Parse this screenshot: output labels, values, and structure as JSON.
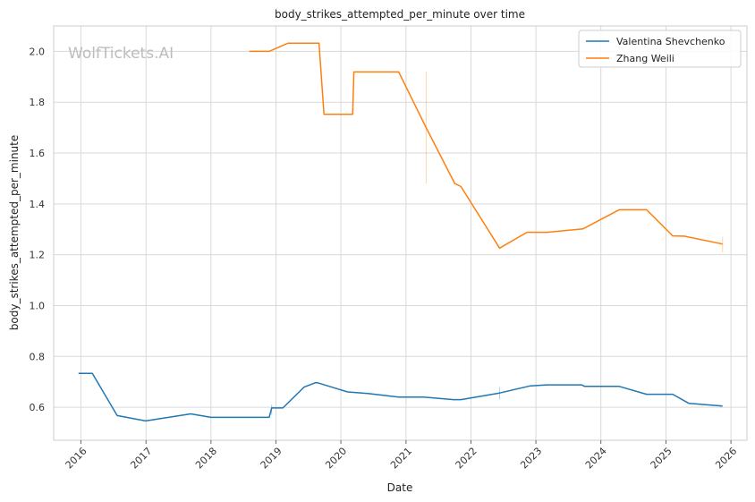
{
  "chart_data": {
    "type": "line",
    "title": "body_strikes_attempted_per_minute over time",
    "xlabel": "Date",
    "ylabel": "body_strikes_attempted_per_minute",
    "watermark": "WolfTickets.AI",
    "x_ticks": [
      "2016",
      "2017",
      "2018",
      "2019",
      "2020",
      "2021",
      "2022",
      "2023",
      "2024",
      "2025",
      "2026"
    ],
    "y_ticks": [
      "0.6",
      "0.8",
      "1.0",
      "1.2",
      "1.4",
      "1.6",
      "1.8",
      "2.0"
    ],
    "xlim": [
      "2015-08-01",
      "2026-04-01"
    ],
    "ylim": [
      0.47,
      2.1
    ],
    "grid": true,
    "legend_position": "top-right",
    "colors": {
      "series1": "#1f77b4",
      "series2": "#ff7f0e"
    },
    "series": [
      {
        "name": "Valentina Shevchenko",
        "points": [
          [
            "2015-12-19",
            0.733
          ],
          [
            "2016-03-05",
            0.733
          ],
          [
            "2016-07-23",
            0.567
          ],
          [
            "2016-12-30",
            0.546
          ],
          [
            "2017-09-09",
            0.574
          ],
          [
            "2018-01-01",
            0.56
          ],
          [
            "2018-11-24",
            0.56
          ],
          [
            "2018-12-08",
            0.597
          ],
          [
            "2019-02-09",
            0.597
          ],
          [
            "2019-06-08",
            0.679
          ],
          [
            "2019-08-10",
            0.696
          ],
          [
            "2019-08-24",
            0.696
          ],
          [
            "2020-02-08",
            0.66
          ],
          [
            "2020-06-01",
            0.654
          ],
          [
            "2020-11-21",
            0.64
          ],
          [
            "2021-04-10",
            0.64
          ],
          [
            "2021-09-25",
            0.63
          ],
          [
            "2021-11-06",
            0.63
          ],
          [
            "2022-06-11",
            0.656
          ],
          [
            "2022-12-01",
            0.684
          ],
          [
            "2023-03-04",
            0.688
          ],
          [
            "2023-09-16",
            0.688
          ],
          [
            "2023-10-01",
            0.682
          ],
          [
            "2024-04-13",
            0.682
          ],
          [
            "2024-09-14",
            0.651
          ],
          [
            "2025-02-08",
            0.651
          ],
          [
            "2025-05-10",
            0.615
          ],
          [
            "2025-11-15",
            0.605
          ]
        ]
      },
      {
        "name": "Zhang Weili",
        "points": [
          [
            "2018-08-04",
            2.0
          ],
          [
            "2018-11-24",
            2.0
          ],
          [
            "2019-03-09",
            2.032
          ],
          [
            "2019-08-31",
            2.032
          ],
          [
            "2019-09-28",
            1.752
          ],
          [
            "2020-03-07",
            1.752
          ],
          [
            "2020-03-14",
            1.919
          ],
          [
            "2020-11-21",
            1.919
          ],
          [
            "2021-04-24",
            1.7
          ],
          [
            "2021-10-02",
            1.48
          ],
          [
            "2021-11-06",
            1.468
          ],
          [
            "2022-06-11",
            1.226
          ],
          [
            "2022-11-12",
            1.288
          ],
          [
            "2023-03-04",
            1.288
          ],
          [
            "2023-09-23",
            1.302
          ],
          [
            "2024-04-13",
            1.377
          ],
          [
            "2024-09-14",
            1.377
          ],
          [
            "2025-02-08",
            1.274
          ],
          [
            "2025-04-12",
            1.273
          ],
          [
            "2025-11-15",
            1.242
          ]
        ]
      }
    ]
  }
}
